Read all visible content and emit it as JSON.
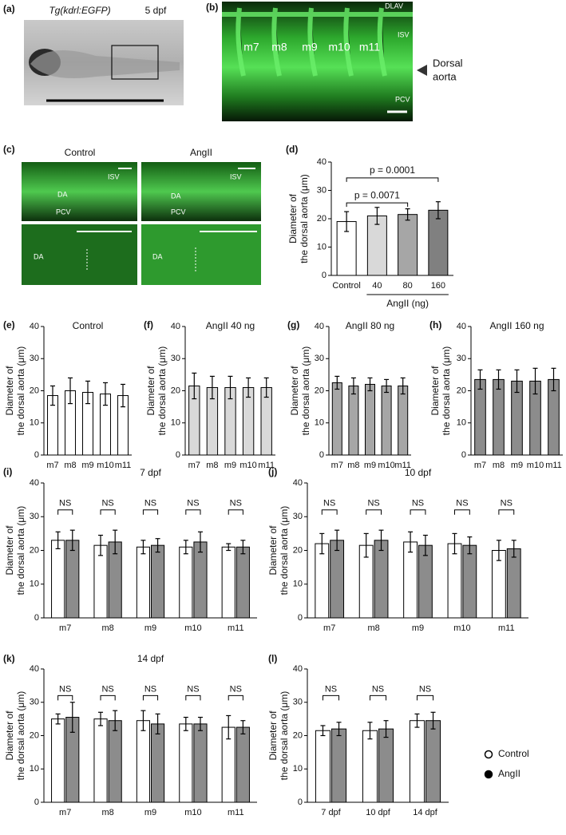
{
  "panels": [
    "(a)",
    "(b)",
    "(c)",
    "(d)",
    "(e)",
    "(f)",
    "(g)",
    "(h)",
    "(i)",
    "(j)",
    "(k)",
    "(l)"
  ],
  "image_a": {
    "title": "Tg(kdrl:EGFP)",
    "stage": "5 dpf"
  },
  "image_b": {
    "labels": [
      "DLAV",
      "ISV",
      "PCV"
    ],
    "segments": [
      "m7",
      "m8",
      "m9",
      "m10",
      "m11"
    ],
    "arrow_label": [
      "Dorsal",
      "aorta"
    ]
  },
  "image_c": {
    "columns": [
      "Control",
      "AngII"
    ],
    "control_labels": [
      "ISV",
      "DA",
      "PCV",
      "DA"
    ],
    "angii_labels": [
      "ISV",
      "DA",
      "PCV",
      "DA"
    ]
  },
  "chart_data": [
    {
      "type": "bar",
      "ylabel": [
        "Diameter of",
        "the dorsal aorta (μm)"
      ],
      "categories": [
        "Control",
        "40",
        "80",
        "160"
      ],
      "values": [
        19,
        21,
        21.5,
        23
      ],
      "errors": [
        3.5,
        3,
        2,
        3
      ],
      "colors": [
        "#ffffff",
        "#d9d9d9",
        "#a6a6a6",
        "#808080"
      ],
      "ylim": [
        0,
        40
      ],
      "yticks": [
        0,
        10,
        20,
        30,
        40
      ],
      "group_label": "AngII (ng)",
      "comparisons": [
        {
          "label": "p = 0.0071",
          "from": "Control",
          "to": "80"
        },
        {
          "label": "p = 0.0001",
          "from": "Control",
          "to": "160"
        }
      ]
    },
    {
      "type": "bar",
      "title": "Control",
      "ylabel": [
        "Diameter of",
        "the dorsal aorta (μm)"
      ],
      "categories": [
        "m7",
        "m8",
        "m9",
        "m10",
        "m11"
      ],
      "values": [
        18.5,
        20,
        19.5,
        19,
        18.5
      ],
      "errors": [
        3,
        4,
        3.5,
        3.5,
        3.5
      ],
      "colors": [
        "#ffffff",
        "#ffffff",
        "#ffffff",
        "#ffffff",
        "#ffffff"
      ],
      "ylim": [
        0,
        40
      ],
      "yticks": [
        0,
        10,
        20,
        30,
        40
      ]
    },
    {
      "type": "bar",
      "title": "AngII 40 ng",
      "ylabel": [
        "Diameter of",
        "the dorsal aorta (μm)"
      ],
      "categories": [
        "m7",
        "m8",
        "m9",
        "m10",
        "m11"
      ],
      "values": [
        21.5,
        21,
        21,
        21,
        21
      ],
      "errors": [
        4,
        3.5,
        3.5,
        3,
        3
      ],
      "colors": [
        "#d9d9d9",
        "#d9d9d9",
        "#d9d9d9",
        "#d9d9d9",
        "#d9d9d9"
      ],
      "ylim": [
        0,
        40
      ],
      "yticks": [
        0,
        10,
        20,
        30,
        40
      ]
    },
    {
      "type": "bar",
      "title": "AngII 80 ng",
      "ylabel": [
        "Diameter of",
        "the dorsal aorta (μm)"
      ],
      "categories": [
        "m7",
        "m8",
        "m9",
        "m10",
        "m11"
      ],
      "values": [
        22.5,
        21.5,
        22,
        21.5,
        21.5
      ],
      "errors": [
        2,
        2.5,
        2,
        2,
        2.5
      ],
      "colors": [
        "#a6a6a6",
        "#a6a6a6",
        "#a6a6a6",
        "#a6a6a6",
        "#a6a6a6"
      ],
      "ylim": [
        0,
        40
      ],
      "yticks": [
        0,
        10,
        20,
        30,
        40
      ]
    },
    {
      "type": "bar",
      "title": "AngII 160 ng",
      "ylabel": [
        "Diameter of",
        "the dorsal aorta (μm)"
      ],
      "categories": [
        "m7",
        "m8",
        "m9",
        "m10",
        "m11"
      ],
      "values": [
        23.5,
        23.5,
        23,
        23,
        23.5
      ],
      "errors": [
        3,
        3,
        3.5,
        4,
        3.5
      ],
      "colors": [
        "#8c8c8c",
        "#8c8c8c",
        "#8c8c8c",
        "#8c8c8c",
        "#8c8c8c"
      ],
      "ylim": [
        0,
        40
      ],
      "yticks": [
        0,
        10,
        20,
        30,
        40
      ]
    },
    {
      "type": "bar",
      "title": "7 dpf",
      "ylabel": [
        "Diameter of",
        "the dorsal aorta (μm)"
      ],
      "categories": [
        "m7",
        "m8",
        "m9",
        "m10",
        "m11"
      ],
      "series": [
        {
          "name": "Control",
          "color": "#ffffff",
          "marker": "open",
          "values": [
            23,
            21.5,
            21,
            21,
            21
          ],
          "errors": [
            2.5,
            3,
            2,
            2,
            1
          ]
        },
        {
          "name": "AngII",
          "color": "#8c8c8c",
          "marker": "filled",
          "values": [
            23,
            22.5,
            21.5,
            22.5,
            21
          ],
          "errors": [
            3,
            3.5,
            2,
            3,
            2
          ]
        }
      ],
      "ns_labels": [
        "NS",
        "NS",
        "NS",
        "NS",
        "NS"
      ],
      "ylim": [
        0,
        40
      ],
      "yticks": [
        0,
        10,
        20,
        30,
        40
      ]
    },
    {
      "type": "bar",
      "title": "10 dpf",
      "ylabel": [
        "Diameter of",
        "the dorsal aorta (μm)"
      ],
      "categories": [
        "m7",
        "m8",
        "m9",
        "m10",
        "m11"
      ],
      "series": [
        {
          "name": "Control",
          "color": "#ffffff",
          "marker": "open",
          "values": [
            22,
            21.5,
            22.5,
            22,
            20
          ],
          "errors": [
            3,
            3.5,
            3,
            3,
            3
          ]
        },
        {
          "name": "AngII",
          "color": "#8c8c8c",
          "marker": "filled",
          "values": [
            23,
            23,
            21.5,
            21.5,
            20.5
          ],
          "errors": [
            3,
            3,
            3,
            2.5,
            2.5
          ]
        }
      ],
      "ns_labels": [
        "NS",
        "NS",
        "NS",
        "NS",
        "NS"
      ],
      "ylim": [
        0,
        40
      ],
      "yticks": [
        0,
        10,
        20,
        30,
        40
      ]
    },
    {
      "type": "bar",
      "title": "14 dpf",
      "ylabel": [
        "Diameter of",
        "the dorsal aorta (μm)"
      ],
      "categories": [
        "m7",
        "m8",
        "m9",
        "m10",
        "m11"
      ],
      "series": [
        {
          "name": "Control",
          "color": "#ffffff",
          "marker": "open",
          "values": [
            25,
            25,
            24.5,
            23.5,
            22.5
          ],
          "errors": [
            1.5,
            2,
            3,
            2,
            3.5
          ]
        },
        {
          "name": "AngII",
          "color": "#8c8c8c",
          "marker": "filled",
          "values": [
            25.5,
            24.5,
            23.5,
            23.5,
            22.5
          ],
          "errors": [
            4.5,
            3,
            3,
            2,
            2
          ]
        }
      ],
      "ns_labels": [
        "NS",
        "NS",
        "NS",
        "NS",
        "NS"
      ],
      "ylim": [
        0,
        40
      ],
      "yticks": [
        0,
        10,
        20,
        30,
        40
      ]
    },
    {
      "type": "bar",
      "ylabel": [
        "Diameter of",
        "the dorsal aorta (μm)"
      ],
      "categories": [
        "7 dpf",
        "10 dpf",
        "14 dpf"
      ],
      "series": [
        {
          "name": "Control",
          "color": "#ffffff",
          "marker": "open",
          "values": [
            21.5,
            21.5,
            24.5
          ],
          "errors": [
            1.5,
            2.5,
            2
          ]
        },
        {
          "name": "AngII",
          "color": "#8c8c8c",
          "marker": "filled",
          "values": [
            22,
            22,
            24.5
          ],
          "errors": [
            2,
            2.5,
            2.5
          ]
        }
      ],
      "ns_labels": [
        "NS",
        "NS",
        "NS"
      ],
      "ylim": [
        0,
        40
      ],
      "yticks": [
        0,
        10,
        20,
        30,
        40
      ],
      "legend": "right"
    }
  ]
}
